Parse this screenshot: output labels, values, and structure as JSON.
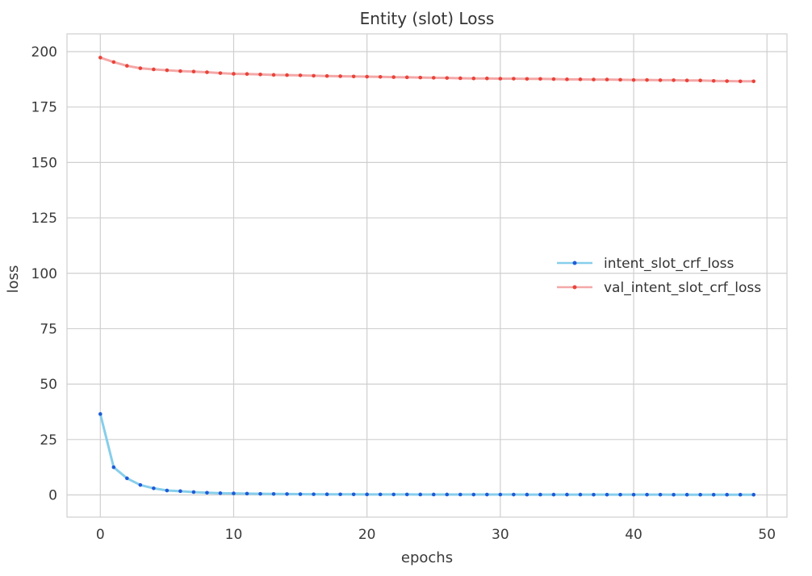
{
  "chart_data": {
    "type": "line",
    "title": "Entity (slot) Loss",
    "xlabel": "epochs",
    "ylabel": "loss",
    "xlim": [
      -2.5,
      51.5
    ],
    "ylim": [
      -10,
      208
    ],
    "xticks": [
      0,
      10,
      20,
      30,
      40,
      50
    ],
    "yticks": [
      0,
      25,
      50,
      75,
      100,
      125,
      150,
      175,
      200
    ],
    "grid": true,
    "legend_position": "center-right",
    "x": [
      0,
      1,
      2,
      3,
      4,
      5,
      6,
      7,
      8,
      9,
      10,
      11,
      12,
      13,
      14,
      15,
      16,
      17,
      18,
      19,
      20,
      21,
      22,
      23,
      24,
      25,
      26,
      27,
      28,
      29,
      30,
      31,
      32,
      33,
      34,
      35,
      36,
      37,
      38,
      39,
      40,
      41,
      42,
      43,
      44,
      45,
      46,
      47,
      48,
      49
    ],
    "series": [
      {
        "name": "intent_slot_crf_loss",
        "line_color": "#87ceeb",
        "marker_color": "#1f5bd6",
        "values": [
          36.5,
          12.5,
          7.5,
          4.5,
          3.0,
          2.0,
          1.7,
          1.3,
          1.0,
          0.8,
          0.7,
          0.6,
          0.5,
          0.45,
          0.4,
          0.35,
          0.33,
          0.3,
          0.28,
          0.26,
          0.25,
          0.24,
          0.23,
          0.22,
          0.21,
          0.2,
          0.2,
          0.19,
          0.18,
          0.18,
          0.17,
          0.17,
          0.16,
          0.16,
          0.15,
          0.15,
          0.15,
          0.14,
          0.14,
          0.14,
          0.13,
          0.13,
          0.13,
          0.12,
          0.12,
          0.12,
          0.12,
          0.11,
          0.11,
          0.11
        ]
      },
      {
        "name": "val_intent_slot_crf_loss",
        "line_color": "#f4a7a7",
        "marker_color": "#e8443a",
        "values": [
          197.3,
          195.3,
          193.6,
          192.5,
          192.0,
          191.6,
          191.2,
          191.0,
          190.7,
          190.3,
          190.0,
          189.9,
          189.7,
          189.5,
          189.4,
          189.3,
          189.1,
          189.0,
          188.9,
          188.8,
          188.7,
          188.6,
          188.5,
          188.4,
          188.3,
          188.2,
          188.1,
          188.0,
          187.9,
          187.9,
          187.8,
          187.8,
          187.7,
          187.7,
          187.6,
          187.5,
          187.5,
          187.4,
          187.4,
          187.3,
          187.2,
          187.2,
          187.1,
          187.1,
          187.0,
          187.0,
          186.8,
          186.7,
          186.6,
          186.6
        ]
      }
    ]
  }
}
